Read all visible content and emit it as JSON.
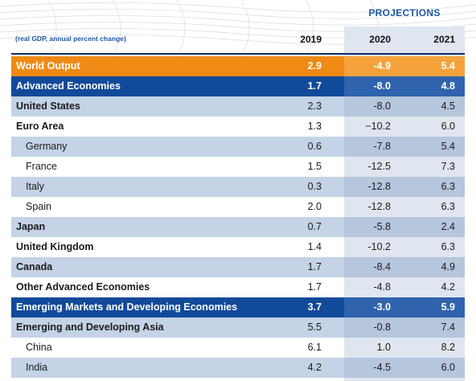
{
  "projections_label": "PROJECTIONS",
  "unit_note": "(real GDP, annual percent change)",
  "years": [
    "2019",
    "2020",
    "2021"
  ],
  "rows": [
    {
      "name": "World Output",
      "v": [
        "2.9",
        "-4.9",
        "5.4"
      ]
    },
    {
      "name": "Advanced Economies",
      "v": [
        "1.7",
        "-8.0",
        "4.8"
      ]
    },
    {
      "name": "United States",
      "v": [
        "2.3",
        "-8.0",
        "4.5"
      ]
    },
    {
      "name": "Euro Area",
      "v": [
        "1.3",
        "−10.2",
        "6.0"
      ]
    },
    {
      "name": "Germany",
      "v": [
        "0.6",
        "-7.8",
        "5.4"
      ]
    },
    {
      "name": "France",
      "v": [
        "1.5",
        "-12.5",
        "7.3"
      ]
    },
    {
      "name": "Italy",
      "v": [
        "0.3",
        "-12.8",
        "6.3"
      ]
    },
    {
      "name": "Spain",
      "v": [
        "2.0",
        "-12.8",
        "6.3"
      ]
    },
    {
      "name": "Japan",
      "v": [
        "0.7",
        "-5.8",
        "2.4"
      ]
    },
    {
      "name": "United Kingdom",
      "v": [
        "1.4",
        "-10.2",
        "6.3"
      ]
    },
    {
      "name": "Canada",
      "v": [
        "1.7",
        "-8.4",
        "4.9"
      ]
    },
    {
      "name": "Other Advanced Economies",
      "v": [
        "1.7",
        "-4.8",
        "4.2"
      ]
    },
    {
      "name": "Emerging Markets and Developing Economies",
      "v": [
        "3.7",
        "-3.0",
        "5.9"
      ]
    },
    {
      "name": "Emerging and Developing Asia",
      "v": [
        "5.5",
        "-0.8",
        "7.4"
      ]
    },
    {
      "name": "China",
      "v": [
        "6.1",
        "1.0",
        "8.2"
      ]
    },
    {
      "name": "India",
      "v": [
        "4.2",
        "-4.5",
        "6.0"
      ]
    }
  ],
  "colors": {
    "world": "#ef8a14",
    "group": "#124a9a",
    "light_band": "#c4d3e6",
    "projection_shade": "#dfe6ef",
    "accent": "#1f57a3"
  }
}
